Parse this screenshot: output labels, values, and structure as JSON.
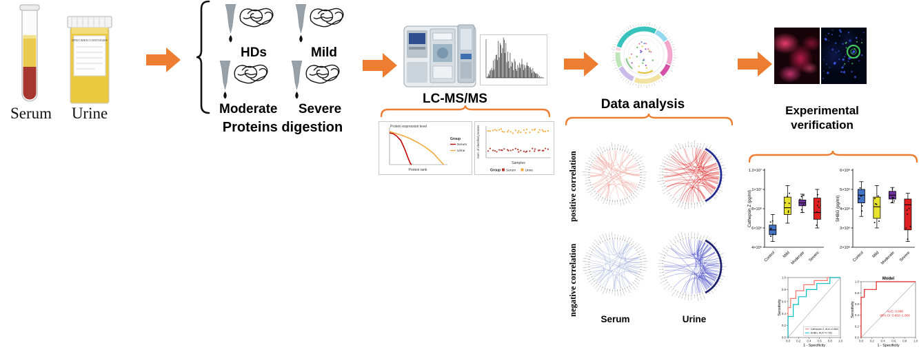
{
  "samples": {
    "serum_label": "Serum",
    "urine_label": "Urine",
    "container_text": "SPECIMEN CONTAINER"
  },
  "digestion": {
    "caption": "Proteins digestion",
    "groups": [
      {
        "label": "HDs"
      },
      {
        "label": "Mild"
      },
      {
        "label": "Moderate"
      },
      {
        "label": "Severe"
      }
    ]
  },
  "lcms": {
    "label": "LC-MS/MS"
  },
  "analysis": {
    "label": "Data analysis",
    "row_labels": [
      "positive correlation",
      "negative correlation"
    ],
    "col_labels": [
      "Serum",
      "Urine"
    ]
  },
  "verification": {
    "label_line1": "Experimental",
    "label_line2": "verification"
  },
  "colors": {
    "accent_orange": "#ED7D31",
    "brace_black": "#111111",
    "serum_red": "#A73530",
    "urine_yellow": "#EAC93F",
    "positive_chord": "#EE9A90",
    "positive_strong": "#DD2222",
    "negative_chord": "#9FAEDC",
    "negative_strong": "#3237C0"
  },
  "chart_data": [
    {
      "id": "protein-expression",
      "type": "line",
      "title": "Protein expression level",
      "xlabel": "Protein rank",
      "legend_title": "Group",
      "series": [
        {
          "name": "Serum",
          "color": "#C00000"
        },
        {
          "name": "Urine",
          "color": "#F2A93B"
        }
      ]
    },
    {
      "id": "identified-proteins",
      "type": "scatter",
      "xlabel": "Samples",
      "ylabel": "Num. of identified proteins",
      "legend_title": "Group",
      "series": [
        {
          "name": "Serum",
          "color": "#B03A2E"
        },
        {
          "name": "Urine",
          "color": "#F2A93B"
        }
      ]
    },
    {
      "id": "cathepsin-boxplot",
      "type": "boxplot",
      "ylabel": "Cathepsin Z (pg/ml)",
      "categories": [
        "Control",
        "Mild",
        "Moderate",
        "Severe"
      ],
      "ytick_labels": [
        "4×10⁶",
        "6×10⁶",
        "8×10⁶",
        "1×10⁷",
        "1.2×10⁷"
      ],
      "ylim": [
        4000000,
        12000000
      ],
      "boxes": [
        {
          "category": "Control",
          "color": "#4472C4",
          "whisker_low": 4600000,
          "q1": 5300000,
          "median": 5800000,
          "q3": 6300000,
          "whisker_high": 7400000
        },
        {
          "category": "Mild",
          "color": "#E6E22E",
          "whisker_low": 6500000,
          "q1": 7400000,
          "median": 8100000,
          "q3": 9200000,
          "whisker_high": 10400000
        },
        {
          "category": "Moderate",
          "color": "#7030A0",
          "whisker_low": 7600000,
          "q1": 8300000,
          "median": 8600000,
          "q3": 8900000,
          "whisker_high": 9500000
        },
        {
          "category": "Severe",
          "color": "#E02020",
          "whisker_low": 6000000,
          "q1": 6900000,
          "median": 7600000,
          "q3": 9100000,
          "whisker_high": 10000000
        }
      ]
    },
    {
      "id": "shbg-boxplot",
      "type": "boxplot",
      "ylabel": "SHBG (pg/ml)",
      "categories": [
        "Control",
        "Mild",
        "Moderate",
        "Severe"
      ],
      "ytick_labels": [
        "2×10⁶",
        "3×10⁶",
        "4×10⁶",
        "5×10⁶",
        "6×10⁶"
      ],
      "ylim": [
        2000000,
        6000000
      ],
      "boxes": [
        {
          "category": "Control",
          "color": "#4472C4",
          "whisker_low": 3600000,
          "q1": 4300000,
          "median": 4700000,
          "q3": 5000000,
          "whisker_high": 5400000
        },
        {
          "category": "Mild",
          "color": "#E6E22E",
          "whisker_low": 3000000,
          "q1": 3500000,
          "median": 4100000,
          "q3": 4600000,
          "whisker_high": 5200000
        },
        {
          "category": "Moderate",
          "color": "#7030A0",
          "whisker_low": 4300000,
          "q1": 4500000,
          "median": 4700000,
          "q3": 4900000,
          "whisker_high": 5100000
        },
        {
          "category": "Severe",
          "color": "#E02020",
          "whisker_low": 2300000,
          "q1": 2900000,
          "median": 4200000,
          "q3": 4500000,
          "whisker_high": 4800000
        }
      ]
    },
    {
      "id": "roc-individual",
      "type": "line",
      "xlabel": "1 - Specificity",
      "ylabel": "Sensitivity",
      "xticks": [
        "0.0",
        "0.2",
        "0.4",
        "0.6",
        "0.8",
        "1.0"
      ],
      "yticks": [
        "0.0",
        "0.2",
        "0.4",
        "0.6",
        "0.8",
        "1.0"
      ],
      "series": [
        {
          "name": "Cathepsin Z, AUC=0.863",
          "color": "#F8766D",
          "points": [
            [
              0,
              0
            ],
            [
              0,
              0.5
            ],
            [
              0.05,
              0.5
            ],
            [
              0.05,
              0.65
            ],
            [
              0.15,
              0.65
            ],
            [
              0.15,
              0.78
            ],
            [
              0.3,
              0.78
            ],
            [
              0.3,
              0.88
            ],
            [
              0.5,
              0.88
            ],
            [
              0.5,
              0.95
            ],
            [
              0.75,
              0.95
            ],
            [
              0.75,
              1
            ],
            [
              1,
              1
            ]
          ]
        },
        {
          "name": "SHBG, AUC=0.736",
          "color": "#00BFC4",
          "points": [
            [
              0,
              0
            ],
            [
              0,
              0.35
            ],
            [
              0.1,
              0.35
            ],
            [
              0.1,
              0.55
            ],
            [
              0.2,
              0.55
            ],
            [
              0.2,
              0.68
            ],
            [
              0.35,
              0.68
            ],
            [
              0.35,
              0.8
            ],
            [
              0.55,
              0.8
            ],
            [
              0.55,
              0.9
            ],
            [
              0.8,
              0.9
            ],
            [
              0.8,
              1
            ],
            [
              1,
              1
            ]
          ]
        }
      ]
    },
    {
      "id": "roc-model",
      "type": "line",
      "title": "Model",
      "xlabel": "1 - Specificity",
      "ylabel": "Sensitivity",
      "xticks": [
        "0.0",
        "0.2",
        "0.4",
        "0.6",
        "0.8",
        "1.0"
      ],
      "yticks": [
        "0.0",
        "0.2",
        "0.4",
        "0.6",
        "0.8",
        "1.0"
      ],
      "annotation": [
        "AUC: 0.908",
        "95% CI: 0.802~1.000"
      ],
      "series": [
        {
          "name": "Model",
          "color": "#E02020",
          "points": [
            [
              0,
              0
            ],
            [
              0,
              0.72
            ],
            [
              0.06,
              0.72
            ],
            [
              0.06,
              0.86
            ],
            [
              0.28,
              0.86
            ],
            [
              0.28,
              1
            ],
            [
              1,
              1
            ]
          ]
        }
      ]
    }
  ]
}
